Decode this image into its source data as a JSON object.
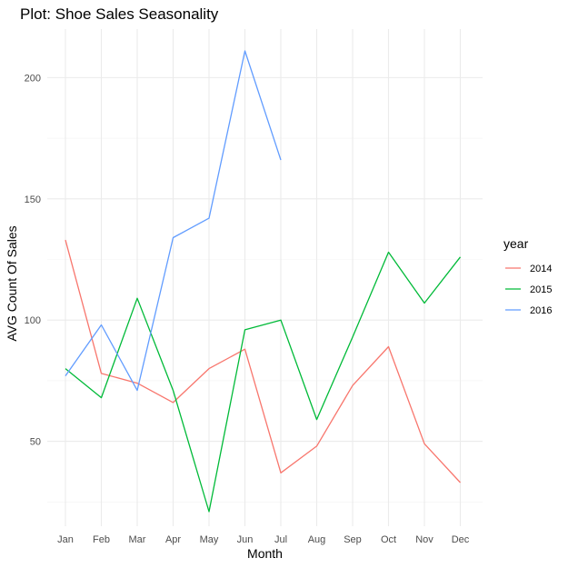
{
  "chart_data": {
    "type": "line",
    "title": "Plot: Shoe Sales Seasonality",
    "xlabel": "Month",
    "ylabel": "AVG Count Of Sales",
    "categories": [
      "Jan",
      "Feb",
      "Mar",
      "Apr",
      "May",
      "Jun",
      "Jul",
      "Aug",
      "Sep",
      "Oct",
      "Nov",
      "Dec"
    ],
    "ylim": [
      15,
      220
    ],
    "yticks": [
      50,
      100,
      150,
      200
    ],
    "grid": true,
    "legend": {
      "title": "year",
      "placement": "right"
    },
    "series": [
      {
        "name": "2014",
        "color": "#F8766D",
        "values": [
          133,
          78,
          74,
          66,
          80,
          88,
          37,
          48,
          73,
          89,
          49,
          33
        ]
      },
      {
        "name": "2015",
        "color": "#00BA38",
        "values": [
          80,
          68,
          109,
          71,
          21,
          96,
          100,
          59,
          93,
          128,
          107,
          126
        ]
      },
      {
        "name": "2016",
        "color": "#619CFF",
        "values": [
          77,
          98,
          71,
          134,
          142,
          211,
          166,
          null,
          null,
          null,
          null,
          null
        ]
      }
    ]
  }
}
